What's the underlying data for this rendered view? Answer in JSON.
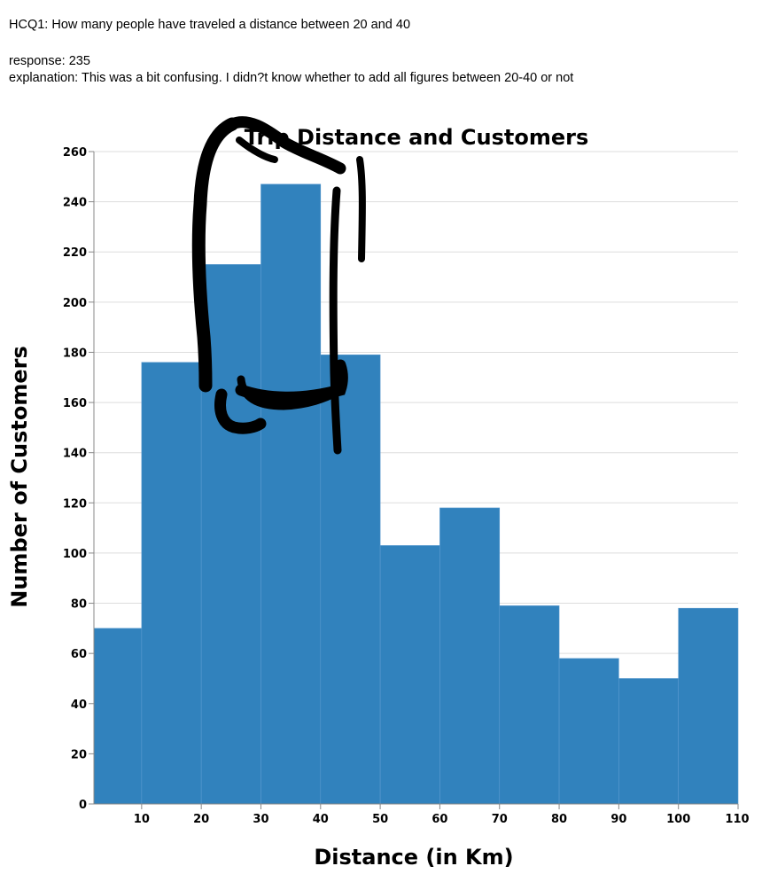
{
  "question": {
    "text": "HCQ1: How many people have traveled a distance between 20 and 40",
    "response": "response: 235",
    "explanation": "explanation: This was a bit confusing. I didn?t know whether to add all figures between 20-40 or not"
  },
  "colors": {
    "bar": "#3182bd",
    "grid": "#dddddd",
    "axis": "#888888",
    "annotation": "#000000"
  },
  "chart_data": {
    "type": "bar",
    "title": "Trip Distance and Customers",
    "xlabel": "Distance (in Km)",
    "ylabel": "Number of Customers",
    "bins": [
      {
        "x0": 2,
        "x1": 10,
        "value": 70
      },
      {
        "x0": 10,
        "x1": 20,
        "value": 176
      },
      {
        "x0": 20,
        "x1": 30,
        "value": 215
      },
      {
        "x0": 30,
        "x1": 40,
        "value": 247
      },
      {
        "x0": 40,
        "x1": 50,
        "value": 179
      },
      {
        "x0": 50,
        "x1": 60,
        "value": 103
      },
      {
        "x0": 60,
        "x1": 70,
        "value": 118
      },
      {
        "x0": 70,
        "x1": 80,
        "value": 79
      },
      {
        "x0": 80,
        "x1": 90,
        "value": 58
      },
      {
        "x0": 90,
        "x1": 100,
        "value": 50
      },
      {
        "x0": 100,
        "x1": 110,
        "value": 78
      }
    ],
    "xlim": [
      2,
      110
    ],
    "ylim": [
      0,
      260
    ],
    "x_ticks": [
      10,
      20,
      30,
      40,
      50,
      60,
      70,
      80,
      90,
      100,
      110
    ],
    "y_ticks": [
      0,
      20,
      40,
      60,
      80,
      100,
      120,
      140,
      160,
      180,
      200,
      220,
      240,
      260
    ],
    "grid": true,
    "legend": "none",
    "annotations": [
      "hand-drawn black scribble over bars 20-50"
    ]
  }
}
